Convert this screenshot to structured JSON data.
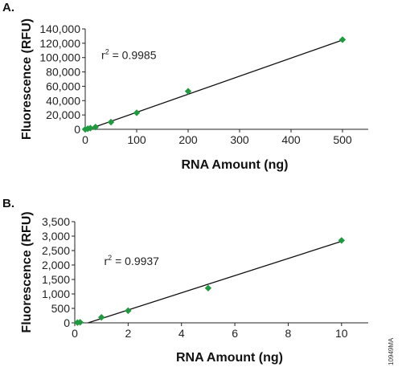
{
  "figure_code": "10949MA",
  "chart_data": [
    {
      "type": "scatter",
      "panel_label": "A.",
      "xlabel": "RNA Amount (ng)",
      "ylabel": "Fluorescence (RFU)",
      "xlim": [
        0,
        550
      ],
      "ylim": [
        0,
        140000
      ],
      "xticks": [
        0,
        100,
        200,
        300,
        400,
        500
      ],
      "yticks": [
        0,
        20000,
        40000,
        60000,
        80000,
        100000,
        120000,
        140000
      ],
      "xtick_labels": [
        "0",
        "100",
        "200",
        "300",
        "400",
        "500"
      ],
      "ytick_labels": [
        "0",
        "20,000",
        "40,000",
        "60,000",
        "80,000",
        "100,000",
        "120,000",
        "140,000"
      ],
      "points": [
        {
          "x": 0,
          "y": 0
        },
        {
          "x": 5,
          "y": 800
        },
        {
          "x": 10,
          "y": 1600
        },
        {
          "x": 20,
          "y": 3200
        },
        {
          "x": 50,
          "y": 10000
        },
        {
          "x": 100,
          "y": 23000
        },
        {
          "x": 200,
          "y": 53000
        },
        {
          "x": 500,
          "y": 125000
        }
      ],
      "fit": {
        "x": [
          0,
          500
        ],
        "y": [
          -1500,
          124500
        ]
      },
      "annotation": {
        "prefix": "r",
        "sup": "2",
        "rest": " = 0.9985"
      },
      "marker_color": "#1f9a3e",
      "grid": false
    },
    {
      "type": "scatter",
      "panel_label": "B.",
      "xlabel": "RNA Amount (ng)",
      "ylabel": "Fluorescence (RFU)",
      "xlim": [
        0,
        11
      ],
      "ylim": [
        0,
        3500
      ],
      "xticks": [
        0,
        2,
        4,
        6,
        8,
        10
      ],
      "yticks": [
        0,
        500,
        1000,
        1500,
        2000,
        2500,
        3000,
        3500
      ],
      "xtick_labels": [
        "0",
        "2",
        "4",
        "6",
        "8",
        "10"
      ],
      "ytick_labels": [
        "0",
        "500",
        "1,000",
        "1,500",
        "2,000",
        "2,500",
        "3,000",
        "3,500"
      ],
      "points": [
        {
          "x": 0.1,
          "y": 10
        },
        {
          "x": 0.2,
          "y": 20
        },
        {
          "x": 1,
          "y": 190
        },
        {
          "x": 2,
          "y": 420
        },
        {
          "x": 5,
          "y": 1200
        },
        {
          "x": 10,
          "y": 2850
        }
      ],
      "fit": {
        "x": [
          0.5,
          10
        ],
        "y": [
          0,
          2820
        ]
      },
      "annotation": {
        "prefix": "r",
        "sup": "2",
        "rest": " = 0.9937"
      },
      "marker_color": "#1f9a3e",
      "grid": false
    }
  ]
}
